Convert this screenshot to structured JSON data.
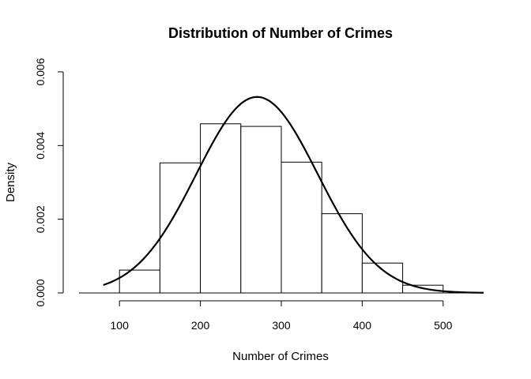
{
  "chart_data": {
    "type": "bar",
    "title": "Distribution of Number of Crimes",
    "xlabel": "Number of Crimes",
    "ylabel": "Density",
    "xlim": [
      50,
      550
    ],
    "ylim": [
      0,
      0.006
    ],
    "x_ticks": [
      100,
      200,
      300,
      400,
      500
    ],
    "y_ticks": [
      "0.000",
      "0.002",
      "0.004",
      "0.006"
    ],
    "bins": [
      {
        "from": 100,
        "to": 150,
        "density": 0.00062
      },
      {
        "from": 150,
        "to": 200,
        "density": 0.00353
      },
      {
        "from": 200,
        "to": 250,
        "density": 0.00459
      },
      {
        "from": 250,
        "to": 300,
        "density": 0.00452
      },
      {
        "from": 300,
        "to": 350,
        "density": 0.00355
      },
      {
        "from": 350,
        "to": 400,
        "density": 0.00215
      },
      {
        "from": 400,
        "to": 450,
        "density": 0.00081
      },
      {
        "from": 450,
        "to": 500,
        "density": 0.00021
      }
    ],
    "curve": {
      "type": "normal-density",
      "mean": 270,
      "sd": 75,
      "x_range": [
        80,
        550
      ]
    },
    "grid": false,
    "legend": "none"
  }
}
